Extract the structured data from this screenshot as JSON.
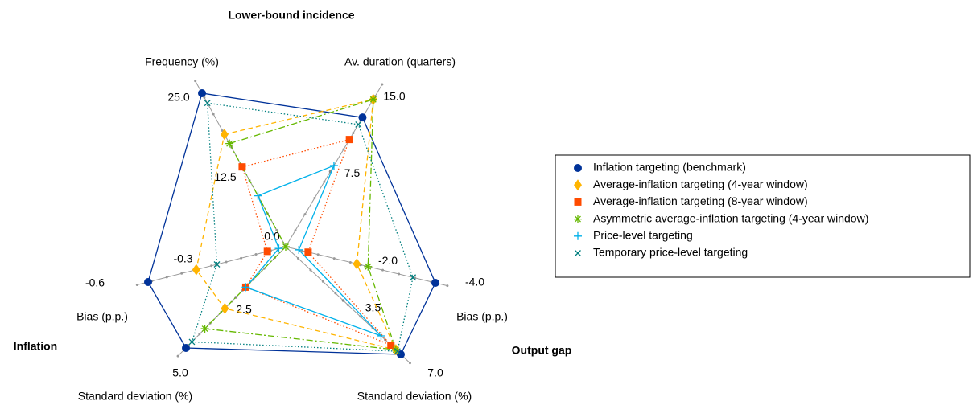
{
  "chart_data": {
    "type": "radar",
    "group_labels": [
      "Lower-bound incidence",
      "Inflation",
      "Output gap"
    ],
    "axes": [
      {
        "name": "Frequency (%)",
        "lim": [
          0,
          25
        ],
        "ticks": [
          {
            "value": 0,
            "label": "0.0"
          },
          12.5,
          {
            "value": 25,
            "label": "25.0"
          }
        ]
      },
      {
        "name": "Av. duration (quarters)",
        "lim": [
          0,
          15
        ],
        "ticks": [
          7.5,
          {
            "value": 15,
            "label": "15.0"
          }
        ]
      },
      {
        "name": "Bias (p.p.)",
        "lim": [
          0,
          -4
        ],
        "ticks": [
          {
            "value": -2,
            "label": "-2.0"
          },
          {
            "value": -4,
            "label": "-4.0"
          }
        ]
      },
      {
        "name": "Standard deviation (%)",
        "lim": [
          0,
          7
        ],
        "ticks": [
          3.5,
          {
            "value": 7,
            "label": "7.0"
          }
        ]
      },
      {
        "name": "Standard deviation (%)",
        "lim": [
          0,
          5
        ],
        "ticks": [
          2.5,
          {
            "value": 5,
            "label": "5.0"
          }
        ]
      },
      {
        "name": "Bias (p.p.)",
        "lim": [
          0,
          -0.6
        ],
        "ticks": [
          -0.3,
          -0.6
        ]
      }
    ],
    "series": [
      {
        "name": "Inflation targeting (benchmark)",
        "color": "#003299",
        "marker": "circle",
        "line_style": "solid",
        "values": [
          25.0,
          12.9,
          -4.0,
          7.0,
          5.0,
          -0.6
        ]
      },
      {
        "name": "Average-inflation targeting (4-year window)",
        "color": "#ffb400",
        "marker": "diamond",
        "line_style": "dashed",
        "values": [
          18.3,
          14.7,
          -1.9,
          6.7,
          3.05,
          -0.39
        ]
      },
      {
        "name": "Average-inflation targeting (8-year window)",
        "color": "#ff4b00",
        "marker": "square",
        "line_style": "dotted",
        "values": [
          13.0,
          10.7,
          -0.6,
          6.4,
          2.0,
          -0.08
        ]
      },
      {
        "name": "Asymmetric average-inflation targeting (4-year window)",
        "color": "#65b800",
        "marker": "asterisk",
        "line_style": "dashdot",
        "values": [
          16.8,
          14.7,
          -2.2,
          6.7,
          4.05,
          0.0
        ]
      },
      {
        "name": "Price-level targeting",
        "color": "#00b1ea",
        "marker": "plus",
        "line_style": "solid",
        "values": [
          8.3,
          8.1,
          -0.35,
          5.8,
          2.0,
          -0.03
        ]
      },
      {
        "name": "Temporary price-level targeting",
        "color": "#007f7f",
        "marker": "x",
        "line_style": "dotted",
        "values": [
          23.4,
          12.2,
          -3.4,
          6.8,
          4.7,
          -0.3
        ]
      }
    ]
  }
}
